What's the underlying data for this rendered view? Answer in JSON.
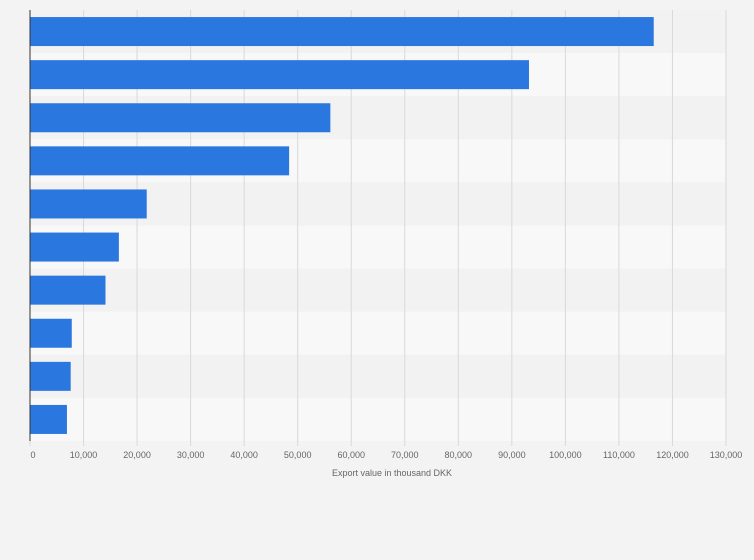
{
  "chart_data": {
    "type": "bar",
    "orientation": "horizontal",
    "title": "",
    "xlabel": "Export value in thousand DKK",
    "ylabel": "",
    "categories": [
      "",
      "",
      "",
      "",
      "",
      "",
      "",
      "",
      "",
      ""
    ],
    "values": [
      116500,
      93200,
      56100,
      48400,
      21800,
      16600,
      14100,
      7800,
      7600,
      6900
    ],
    "xlim": [
      0,
      130000
    ],
    "ticks": [
      0,
      10000,
      20000,
      30000,
      40000,
      50000,
      60000,
      70000,
      80000,
      90000,
      100000,
      110000,
      120000,
      130000
    ],
    "tick_labels": [
      "0",
      "10,000",
      "20,000",
      "30,000",
      "40,000",
      "50,000",
      "60,000",
      "70,000",
      "80,000",
      "90,000",
      "100,000",
      "110,000",
      "120,000",
      "130,000"
    ],
    "grid": true,
    "legend": "none",
    "colors": {
      "bar": "#2a77e0",
      "band_a": "#f2f2f2",
      "band_b": "#f8f8f8",
      "grid": "#d9d9d9",
      "axis": "#333333"
    }
  }
}
